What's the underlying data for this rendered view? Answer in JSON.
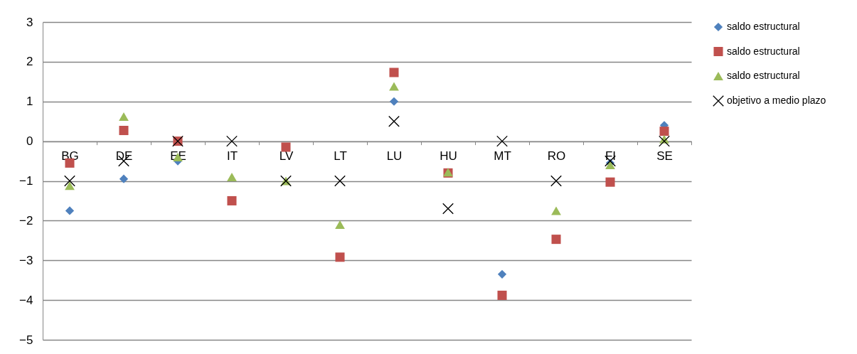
{
  "chart_data": {
    "type": "scatter",
    "categories": [
      "BG",
      "DE",
      "EE",
      "IT",
      "LV",
      "LT",
      "LU",
      "HU",
      "MT",
      "RO",
      "FI",
      "SE"
    ],
    "series": [
      {
        "name": "saldo estructural",
        "color": "#4f81bd",
        "marker": "diamond",
        "values": [
          -1.75,
          -0.95,
          -0.5,
          null,
          null,
          null,
          1.0,
          null,
          -3.35,
          null,
          -0.55,
          0.4
        ]
      },
      {
        "name": "saldo estructural",
        "color": "#c0504d",
        "marker": "square",
        "values": [
          -0.55,
          0.27,
          0.0,
          -1.5,
          -0.15,
          -2.92,
          1.73,
          -0.8,
          -3.88,
          -2.47,
          -1.03,
          0.25
        ]
      },
      {
        "name": "saldo estructural",
        "color": "#9bbb59",
        "marker": "triangle",
        "values": [
          -1.12,
          0.62,
          -0.4,
          -0.9,
          -1.0,
          -2.1,
          1.38,
          -0.78,
          null,
          -1.75,
          -0.6,
          0.05
        ]
      },
      {
        "name": "objetivo a medio plazo",
        "color": "#000000",
        "marker": "cross",
        "values": [
          -1,
          -0.5,
          0,
          0,
          -1,
          -1,
          0.5,
          -1.7,
          0,
          -1,
          -0.5,
          0
        ]
      }
    ],
    "ylim": [
      -5,
      3
    ],
    "yticks": [
      -5,
      -4,
      -3,
      -2,
      -1,
      0,
      1,
      2,
      3
    ],
    "grid": "y",
    "legend": "right"
  }
}
